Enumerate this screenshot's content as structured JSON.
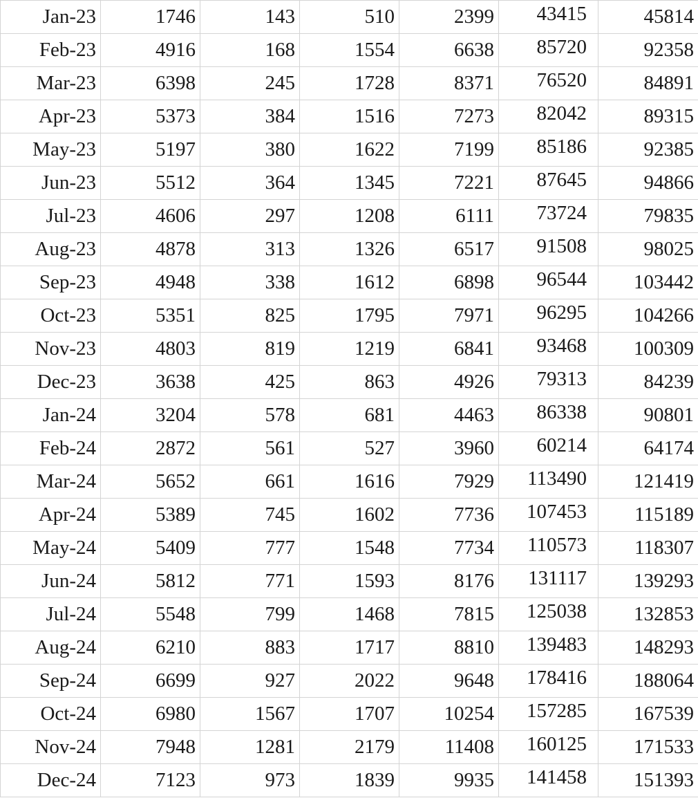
{
  "table": {
    "rows": [
      [
        "Jan-23",
        "1746",
        "143",
        "510",
        "2399",
        "43415",
        "45814"
      ],
      [
        "Feb-23",
        "4916",
        "168",
        "1554",
        "6638",
        "85720",
        "92358"
      ],
      [
        "Mar-23",
        "6398",
        "245",
        "1728",
        "8371",
        "76520",
        "84891"
      ],
      [
        "Apr-23",
        "5373",
        "384",
        "1516",
        "7273",
        "82042",
        "89315"
      ],
      [
        "May-23",
        "5197",
        "380",
        "1622",
        "7199",
        "85186",
        "92385"
      ],
      [
        "Jun-23",
        "5512",
        "364",
        "1345",
        "7221",
        "87645",
        "94866"
      ],
      [
        "Jul-23",
        "4606",
        "297",
        "1208",
        "6111",
        "73724",
        "79835"
      ],
      [
        "Aug-23",
        "4878",
        "313",
        "1326",
        "6517",
        "91508",
        "98025"
      ],
      [
        "Sep-23",
        "4948",
        "338",
        "1612",
        "6898",
        "96544",
        "103442"
      ],
      [
        "Oct-23",
        "5351",
        "825",
        "1795",
        "7971",
        "96295",
        "104266"
      ],
      [
        "Nov-23",
        "4803",
        "819",
        "1219",
        "6841",
        "93468",
        "100309"
      ],
      [
        "Dec-23",
        "3638",
        "425",
        "863",
        "4926",
        "79313",
        "84239"
      ],
      [
        "Jan-24",
        "3204",
        "578",
        "681",
        "4463",
        "86338",
        "90801"
      ],
      [
        "Feb-24",
        "2872",
        "561",
        "527",
        "3960",
        "60214",
        "64174"
      ],
      [
        "Mar-24",
        "5652",
        "661",
        "1616",
        "7929",
        "113490",
        "121419"
      ],
      [
        "Apr-24",
        "5389",
        "745",
        "1602",
        "7736",
        "107453",
        "115189"
      ],
      [
        "May-24",
        "5409",
        "777",
        "1548",
        "7734",
        "110573",
        "118307"
      ],
      [
        "Jun-24",
        "5812",
        "771",
        "1593",
        "8176",
        "131117",
        "139293"
      ],
      [
        "Jul-24",
        "5548",
        "799",
        "1468",
        "7815",
        "125038",
        "132853"
      ],
      [
        "Aug-24",
        "6210",
        "883",
        "1717",
        "8810",
        "139483",
        "148293"
      ],
      [
        "Sep-24",
        "6699",
        "927",
        "2022",
        "9648",
        "178416",
        "188064"
      ],
      [
        "Oct-24",
        "6980",
        "1567",
        "1707",
        "10254",
        "157285",
        "167539"
      ],
      [
        "Nov-24",
        "7948",
        "1281",
        "2179",
        "11408",
        "160125",
        "171533"
      ],
      [
        "Dec-24",
        "7123",
        "973",
        "1839",
        "9935",
        "141458",
        "151393"
      ]
    ]
  },
  "colors": {
    "gridline": "#d4d4d4",
    "text": "#1a1a1a",
    "background": "#ffffff"
  }
}
